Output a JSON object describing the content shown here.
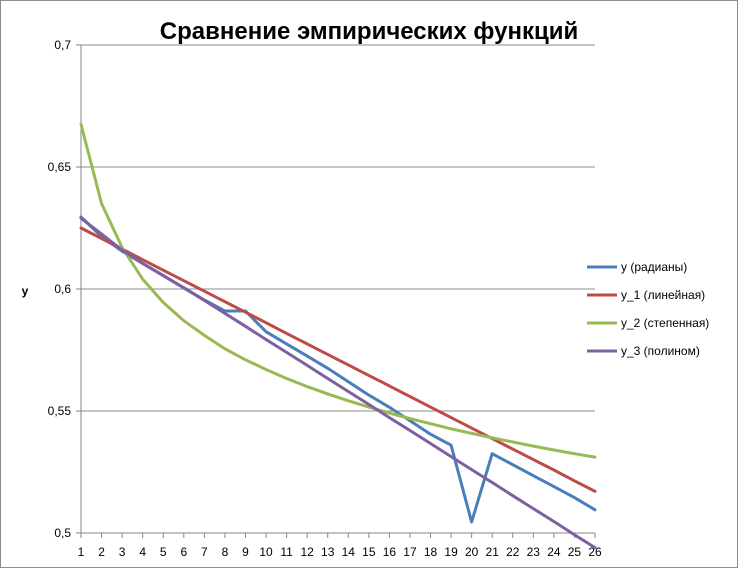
{
  "chart_data": {
    "type": "line",
    "title": "Сравнение эмпирических функций",
    "xlabel": "",
    "ylabel": "y",
    "ylim": [
      0.5,
      0.7
    ],
    "y_ticks": [
      "0,5",
      "0,55",
      "0,6",
      "0,65",
      "0,7"
    ],
    "y_tick_values": [
      0.5,
      0.55,
      0.6,
      0.65,
      0.7
    ],
    "categories": [
      "1",
      "2",
      "3",
      "4",
      "5",
      "6",
      "7",
      "8",
      "9",
      "10",
      "11",
      "12",
      "13",
      "14",
      "15",
      "16",
      "17",
      "18",
      "19",
      "20",
      "21",
      "22",
      "23",
      "24",
      "25",
      "26"
    ],
    "grid": "horizontal",
    "legend_position": "right",
    "series": [
      {
        "name": "y (радианы)",
        "color": "#4a7ebb",
        "values": [
          0.6295,
          0.6215,
          0.6155,
          0.6105,
          0.6055,
          0.6005,
          0.5955,
          0.591,
          0.591,
          0.5825,
          0.5775,
          0.5725,
          0.5675,
          0.562,
          0.5565,
          0.5515,
          0.546,
          0.5405,
          0.536,
          0.5045,
          0.5325,
          0.528,
          0.5235,
          0.519,
          0.5145,
          0.5095
        ]
      },
      {
        "name": "y_1 (линейная)",
        "color": "#be4b48",
        "values": [
          0.625,
          0.6207,
          0.6164,
          0.612,
          0.6077,
          0.6034,
          0.5991,
          0.5948,
          0.5905,
          0.5862,
          0.5818,
          0.5775,
          0.5732,
          0.5689,
          0.5646,
          0.5603,
          0.5559,
          0.5516,
          0.5473,
          0.543,
          0.5387,
          0.5344,
          0.5301,
          0.5258,
          0.5214,
          0.5171
        ]
      },
      {
        "name": "y_2 (степенная)",
        "color": "#98b954",
        "values": [
          0.6675,
          0.635,
          0.617,
          0.604,
          0.5945,
          0.587,
          0.581,
          0.5755,
          0.571,
          0.567,
          0.5633,
          0.56,
          0.557,
          0.5542,
          0.5516,
          0.5492,
          0.5469,
          0.5448,
          0.5427,
          0.5408,
          0.539,
          0.5373,
          0.5356,
          0.534,
          0.5325,
          0.5311
        ]
      },
      {
        "name": "y_3 (полином)",
        "color": "#7d60a0",
        "values": [
          0.629,
          0.6225,
          0.616,
          0.6105,
          0.6055,
          0.6005,
          0.5953,
          0.59,
          0.5847,
          0.5793,
          0.574,
          0.5687,
          0.5633,
          0.558,
          0.5527,
          0.5473,
          0.542,
          0.5367,
          0.5313,
          0.526,
          0.5207,
          0.5153,
          0.51,
          0.5047,
          0.4993,
          0.494
        ]
      }
    ]
  }
}
